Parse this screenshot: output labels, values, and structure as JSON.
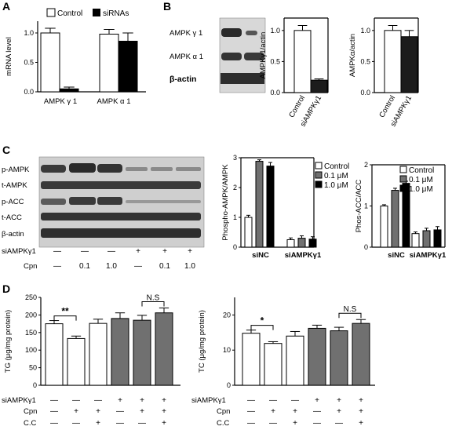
{
  "panels": {
    "A": "A",
    "B": "B",
    "C": "C",
    "D": "D"
  },
  "blots": {
    "B": [
      "AMPK γ 1",
      "AMPK α 1",
      "β-actin"
    ],
    "C": [
      "p-AMPK",
      "t-AMPK",
      "p-ACC",
      "t-ACC",
      "β-actin"
    ]
  },
  "row_labels": {
    "si": "siAMPKγ1",
    "cpn": "Cpn",
    "cc": "C.C"
  },
  "C_conditions": {
    "si": [
      "—",
      "—",
      "—",
      "+",
      "+",
      "+"
    ],
    "cpn": [
      "—",
      "0.1",
      "1.0",
      "—",
      "0.1",
      "1.0"
    ]
  },
  "D_conditions": {
    "si": [
      "—",
      "—",
      "—",
      "+",
      "+",
      "+"
    ],
    "cpn": [
      "—",
      "+",
      "+",
      "—",
      "+",
      "+"
    ],
    "cc": [
      "—",
      "—",
      "+",
      "—",
      "—",
      "+"
    ]
  },
  "colors": {
    "white": "#ffffff",
    "grey": "#707070",
    "black": "#000000",
    "dark": "#1c1c1c"
  },
  "chart_data": [
    {
      "id": "A",
      "type": "bar",
      "ylabel": "mRNA level",
      "ylim": [
        0,
        1.2
      ],
      "yticks": [
        "0.0",
        "0.5",
        "1.0"
      ],
      "categories": [
        "AMPK γ 1",
        "AMPK α 1"
      ],
      "series": [
        {
          "name": "Control",
          "values": [
            1.0,
            0.98
          ],
          "errors": [
            0.08,
            0.08
          ]
        },
        {
          "name": "siRNAs",
          "values": [
            0.05,
            0.86
          ],
          "errors": [
            0.03,
            0.14
          ]
        }
      ]
    },
    {
      "id": "B1",
      "type": "bar",
      "ylabel": "AMPKγ1/actin",
      "ylim": [
        0,
        1.2
      ],
      "yticks": [
        "0.0",
        "0.5",
        "1.0"
      ],
      "categories": [
        "Control",
        "siAMPKγ1"
      ],
      "values": [
        1.0,
        0.2
      ],
      "errors": [
        0.08,
        0.02
      ]
    },
    {
      "id": "B2",
      "type": "bar",
      "ylabel": "AMPKα/actin",
      "ylim": [
        0,
        1.2
      ],
      "yticks": [
        "0.0",
        "0.5",
        "1.0"
      ],
      "categories": [
        "Control",
        "siAMPKγ1"
      ],
      "values": [
        1.0,
        0.9
      ],
      "errors": [
        0.08,
        0.1
      ]
    },
    {
      "id": "C1",
      "type": "bar",
      "ylabel": "Phospho-AMPK/AMPK",
      "ylim": [
        0,
        3
      ],
      "yticks": [
        "0",
        "1",
        "2",
        "3"
      ],
      "categories": [
        "siNC",
        "siAMPKγ1"
      ],
      "series": [
        {
          "name": "Control",
          "values": [
            1.0,
            0.25
          ],
          "errors": [
            0.07,
            0.06
          ]
        },
        {
          "name": "0.1 μM",
          "values": [
            2.88,
            0.3
          ],
          "errors": [
            0.05,
            0.08
          ]
        },
        {
          "name": "1.0 μM",
          "values": [
            2.72,
            0.27
          ],
          "errors": [
            0.12,
            0.08
          ]
        }
      ]
    },
    {
      "id": "C2",
      "type": "bar",
      "ylabel": "Phos-ACC/ACC",
      "ylim": [
        0,
        2
      ],
      "yticks": [
        "0",
        "1",
        "2"
      ],
      "categories": [
        "siNC",
        "siAMPKγ1"
      ],
      "series": [
        {
          "name": "Control",
          "values": [
            1.0,
            0.33
          ],
          "errors": [
            0.03,
            0.04
          ]
        },
        {
          "name": "0.1 μM",
          "values": [
            1.38,
            0.4
          ],
          "errors": [
            0.05,
            0.06
          ]
        },
        {
          "name": "1.0 μM",
          "values": [
            1.55,
            0.42
          ],
          "errors": [
            0.05,
            0.08
          ]
        }
      ]
    },
    {
      "id": "D1",
      "type": "bar",
      "ylabel": "TG (μg/mg protein)",
      "ylim": [
        0,
        250
      ],
      "yticks": [
        "0",
        "50",
        "100",
        "150",
        "200",
        "250"
      ],
      "values": [
        175,
        133,
        176,
        190,
        185,
        206
      ],
      "errors": [
        9,
        7,
        12,
        16,
        14,
        14
      ],
      "fills": [
        "white",
        "white",
        "white",
        "grey",
        "grey",
        "grey"
      ],
      "annotations": [
        {
          "text": "**"
        },
        {
          "text": "N.S"
        }
      ]
    },
    {
      "id": "D2",
      "type": "bar",
      "ylabel": "TC (μg/mg protein)",
      "ylim": [
        0,
        25
      ],
      "yticks": [
        "0",
        "10",
        "20"
      ],
      "values": [
        14.8,
        11.9,
        14.0,
        16.2,
        15.5,
        17.6
      ],
      "errors": [
        0.9,
        0.5,
        1.3,
        0.9,
        1.0,
        1.1
      ],
      "fills": [
        "white",
        "white",
        "white",
        "grey",
        "grey",
        "grey"
      ],
      "annotations": [
        {
          "text": "*"
        },
        {
          "text": "N.S"
        }
      ]
    }
  ]
}
